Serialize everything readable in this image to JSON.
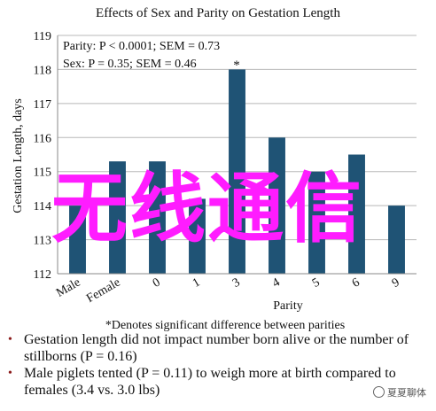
{
  "chart_data": {
    "type": "bar",
    "title": "Effects of Sex and Parity on Gestation Length",
    "ylabel": "Gestation Length, days",
    "xlabel": "Parity",
    "ylim": [
      112,
      119
    ],
    "yticks": [
      "112",
      "113",
      "114",
      "115",
      "116",
      "117",
      "118",
      "119"
    ],
    "categories": [
      "Male",
      "Female",
      "0",
      "1",
      "3",
      "4",
      "5",
      "6",
      "9"
    ],
    "values": [
      114.0,
      115.3,
      115.3,
      114.2,
      118.0,
      116.0,
      115.0,
      115.5,
      114.0
    ],
    "bar_color": "#1f5375",
    "annotations": [
      "Parity: P < 0.0001; SEM = 0.73",
      "Sex: P = 0.35; SEM = 0.46"
    ],
    "asterisk": "*",
    "footnote": "*Denotes significant difference between parities"
  },
  "bullets": [
    "Gestation length did not impact number born alive or the number of stillborns (P = 0.16)",
    "Male piglets tented (P = 0.11) to weigh more at birth compared to females (3.4 vs. 3.0 lbs)"
  ],
  "overlay_text": "无线通信",
  "watermark": "夏夏聊体",
  "colors": {
    "overlay": "#ff1cff",
    "bullet_marker": "#8b1a1a"
  }
}
